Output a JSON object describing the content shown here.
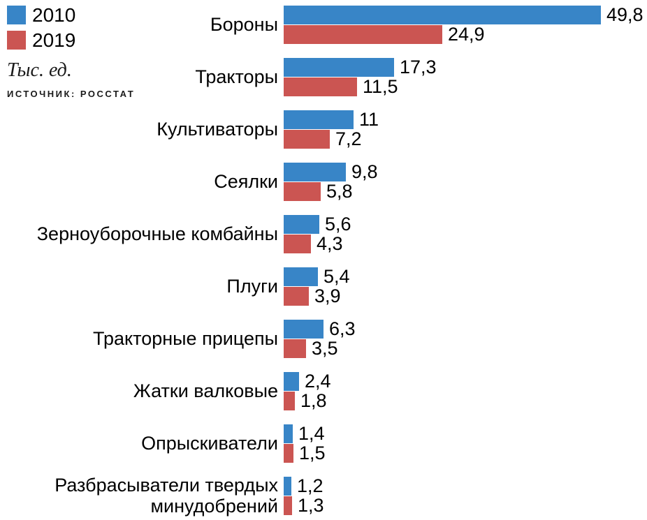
{
  "legend": {
    "items": [
      {
        "label": "2010",
        "color": "#3885C7"
      },
      {
        "label": "2019",
        "color": "#CB5552"
      }
    ]
  },
  "units_label": "Тыс. ед.",
  "source_label": "ИСТОЧНИК: РОССТАТ",
  "chart_data": {
    "type": "bar",
    "orientation": "horizontal",
    "title": "",
    "xlabel": "Тыс. ед.",
    "ylabel": "",
    "xmax": 49.8,
    "grid": false,
    "legend_position": "top-left",
    "categories": [
      "Бороны",
      "Тракторы",
      "Культиваторы",
      "Сеялки",
      "Зерноуборочные комбайны",
      "Плуги",
      "Тракторные прицепы",
      "Жатки валковые",
      "Опрыскиватели",
      "Разбрасыватели твердых минудобрений"
    ],
    "series": [
      {
        "name": "2010",
        "color": "#3885C7",
        "values": [
          49.8,
          17.3,
          11,
          9.8,
          5.6,
          5.4,
          6.3,
          2.4,
          1.4,
          1.2
        ]
      },
      {
        "name": "2019",
        "color": "#CB5552",
        "values": [
          24.9,
          11.5,
          7.2,
          5.8,
          4.3,
          3.9,
          3.5,
          1.8,
          1.5,
          1.3
        ]
      }
    ],
    "value_labels": [
      [
        "49,8",
        "17,3",
        "11",
        "9,8",
        "5,6",
        "5,4",
        "6,3",
        "2,4",
        "1,4",
        "1,2"
      ],
      [
        "24,9",
        "11,5",
        "7,2",
        "5,8",
        "4,3",
        "3,9",
        "3,5",
        "1,8",
        "1,5",
        "1,3"
      ]
    ]
  }
}
